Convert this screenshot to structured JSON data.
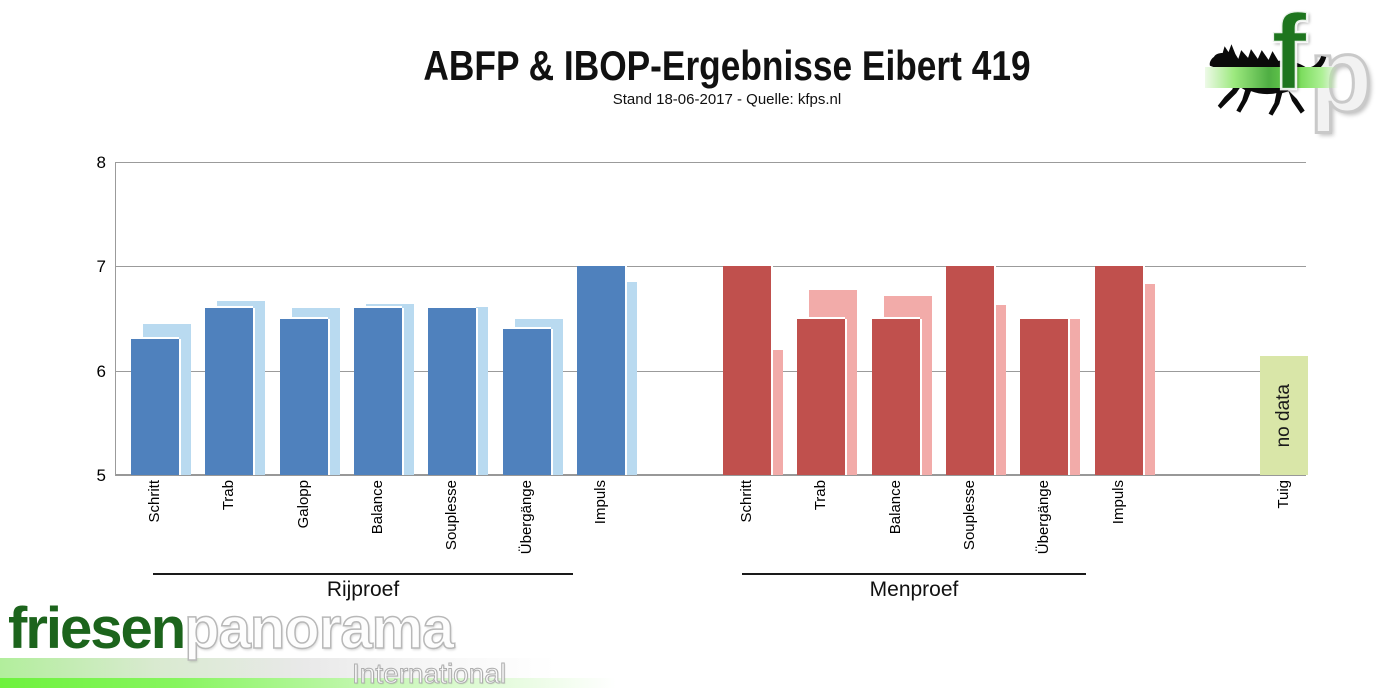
{
  "header": {
    "title": "ABFP & IBOP-Ergebnisse Eibert 419",
    "subtitle": "Stand 18-06-2017 - Quelle: kfps.nl"
  },
  "branding": {
    "top_right": {
      "letter_f": "f",
      "letter_p": "p",
      "horse_icon": "friesian-horse-silhouette"
    },
    "bottom_left": {
      "name_green": "friesen",
      "name_light": "panorama",
      "subtitle": "International"
    }
  },
  "chart_data": {
    "type": "bar",
    "title": "ABFP & IBOP-Ergebnisse Eibert 419",
    "xlabel": "",
    "ylabel": "",
    "ylim": [
      5,
      8
    ],
    "yticks": [
      8,
      7,
      6,
      5
    ],
    "grid": true,
    "legend": "none (two unlabeled series per category: dark front bar, light back bar)",
    "groups": [
      {
        "label": "Rijproef",
        "front_color": "#4f81bd",
        "back_color": "#b9daf0",
        "categories": [
          {
            "label": "Schritt",
            "front": 6.3,
            "back": 6.45
          },
          {
            "label": "Trab",
            "front": 6.6,
            "back": 6.67
          },
          {
            "label": "Galopp",
            "front": 6.5,
            "back": 6.6
          },
          {
            "label": "Balance",
            "front": 6.6,
            "back": 6.64
          },
          {
            "label": "Souplesse",
            "front": 6.6,
            "back": 6.61
          },
          {
            "label": "Übergänge",
            "front": 6.4,
            "back": 6.5
          },
          {
            "label": "Impuls",
            "front": 7.0,
            "back": 6.85
          }
        ]
      },
      {
        "label": "Menproef",
        "front_color": "#c0504d",
        "back_color": "#f2aba9",
        "categories": [
          {
            "label": "Schritt",
            "front": 7.0,
            "back": 6.2
          },
          {
            "label": "Trab",
            "front": 6.5,
            "back": 6.77
          },
          {
            "label": "Balance",
            "front": 6.5,
            "back": 6.72
          },
          {
            "label": "Souplesse",
            "front": 7.0,
            "back": 6.63
          },
          {
            "label": "Übergänge",
            "front": 6.5,
            "back": 6.5
          },
          {
            "label": "Impuls",
            "front": 7.0,
            "back": 6.83
          }
        ]
      },
      {
        "label": "",
        "front_color": "#d9e6a8",
        "categories": [
          {
            "label": "Tuig",
            "front": 6.14,
            "single": true,
            "annotation": "no data"
          }
        ]
      }
    ]
  }
}
